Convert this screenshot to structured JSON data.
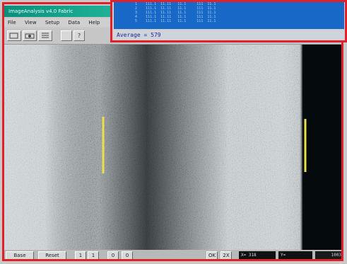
{
  "window": {
    "title": "ImageAnalysis v4.0 Fabric",
    "menu": [
      "File",
      "View",
      "Setup",
      "Data",
      "Help"
    ]
  },
  "toolbar": {
    "buttons": [
      "",
      "",
      "",
      "?"
    ]
  },
  "overlay": {
    "rows": [
      "1    111.1  11.11   11.1     111  11.1",
      "2    111.1  11.11   11.1     111  11.1",
      "3    111.1  11.11   11.1     111  11.1",
      "4    111.1  11.11   11.1     111  11.1",
      "5    111.1  11.11   11.1     111  11.1"
    ],
    "average": "Average = 579"
  },
  "statusbar": {
    "base": "Base",
    "reset": "Reset",
    "nav": [
      "1",
      "1",
      "0",
      "0"
    ],
    "ok": "OK",
    "zoom": "2X",
    "field1": "X= 318",
    "field2": "Y=",
    "value": "1003"
  },
  "colors": {
    "frame": "#e0202a",
    "marker": "#e8e04a",
    "overlay_bg": "#1868c8",
    "title_bg": "#0a8f7a"
  }
}
